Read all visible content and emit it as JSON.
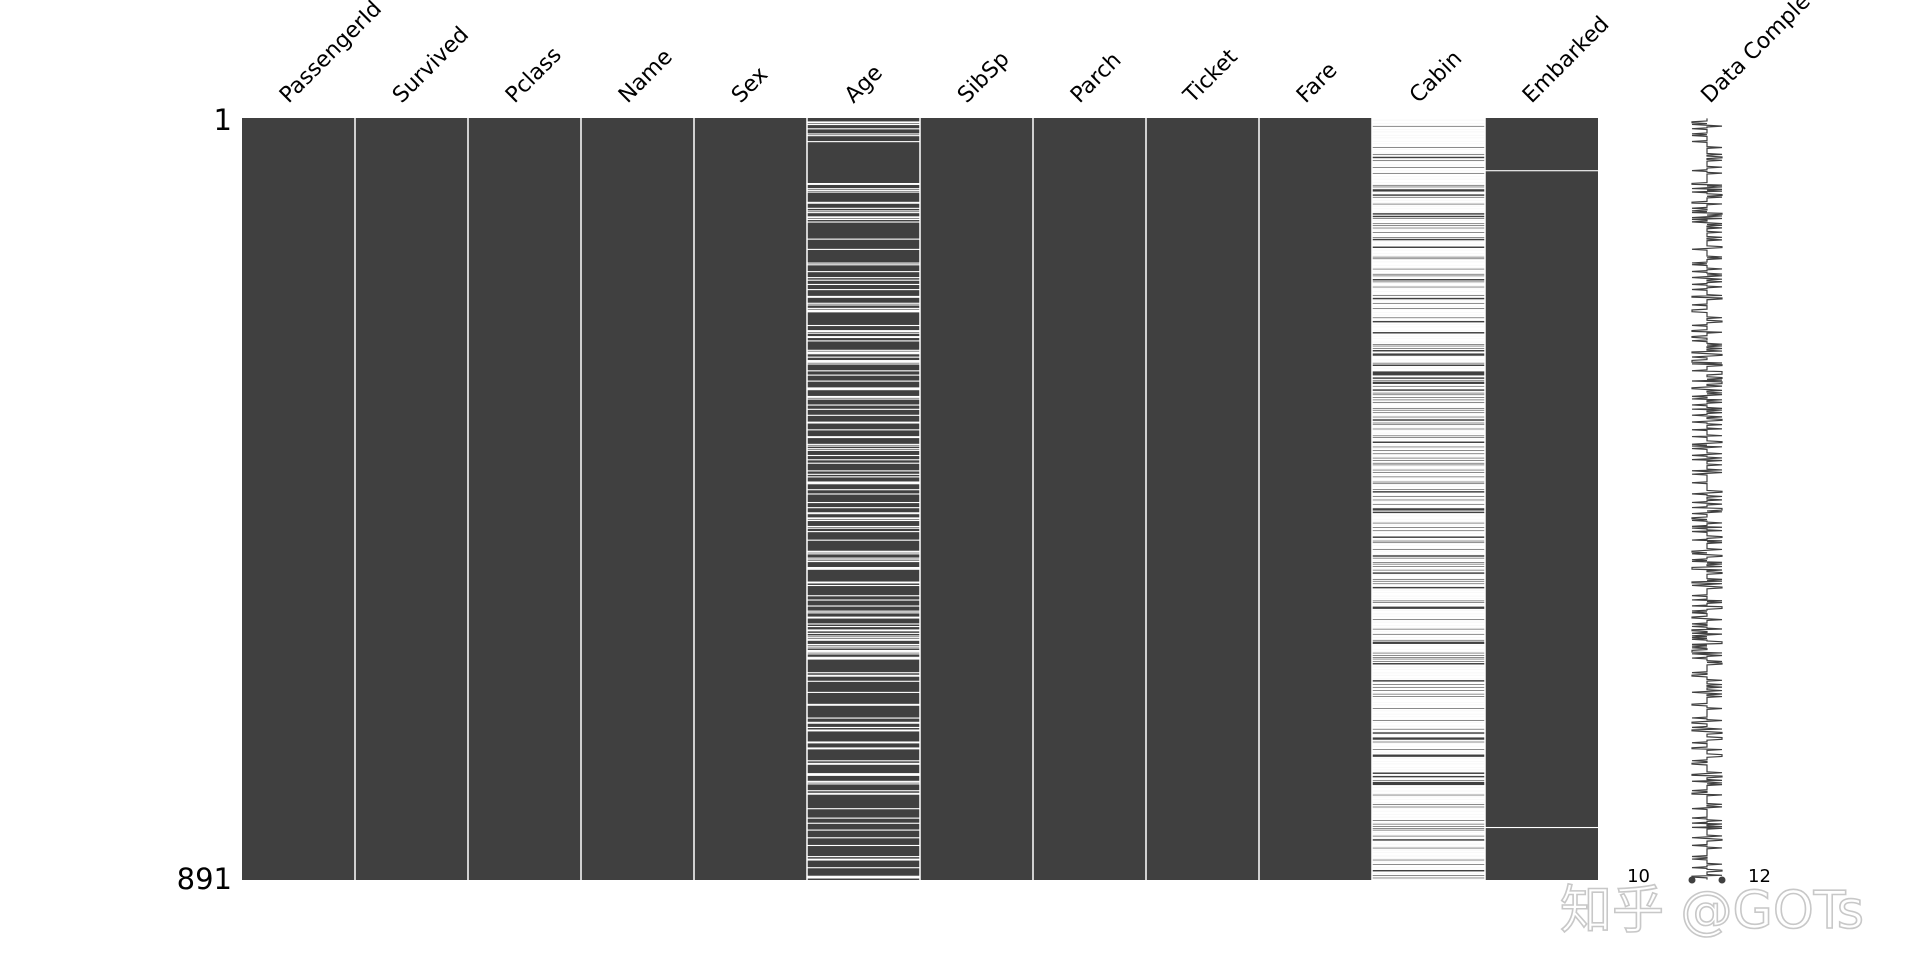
{
  "chart_data": {
    "type": "heatmap",
    "subtype": "missing-value matrix",
    "columns": [
      "PassengerId",
      "Survived",
      "Pclass",
      "Name",
      "Sex",
      "Age",
      "SibSp",
      "Parch",
      "Ticket",
      "Fare",
      "Cabin",
      "Embarked"
    ],
    "rows": {
      "first_label": "1",
      "last_label": "891",
      "count": 891
    },
    "missing_counts": {
      "PassengerId": 0,
      "Survived": 0,
      "Pclass": 0,
      "Name": 0,
      "Sex": 0,
      "Age": 177,
      "SibSp": 0,
      "Parch": 0,
      "Ticket": 0,
      "Fare": 0,
      "Cabin": 687,
      "Embarked": 2
    },
    "embarked_missing_rows": [
      62,
      830
    ],
    "sparkline": {
      "label": "Data Completeness",
      "min_label": "10",
      "max_label": "12",
      "range": [
        10,
        12
      ]
    },
    "present_color": "#404040",
    "missing_color": "#ffffff"
  },
  "watermark": "知乎 @GOTs"
}
